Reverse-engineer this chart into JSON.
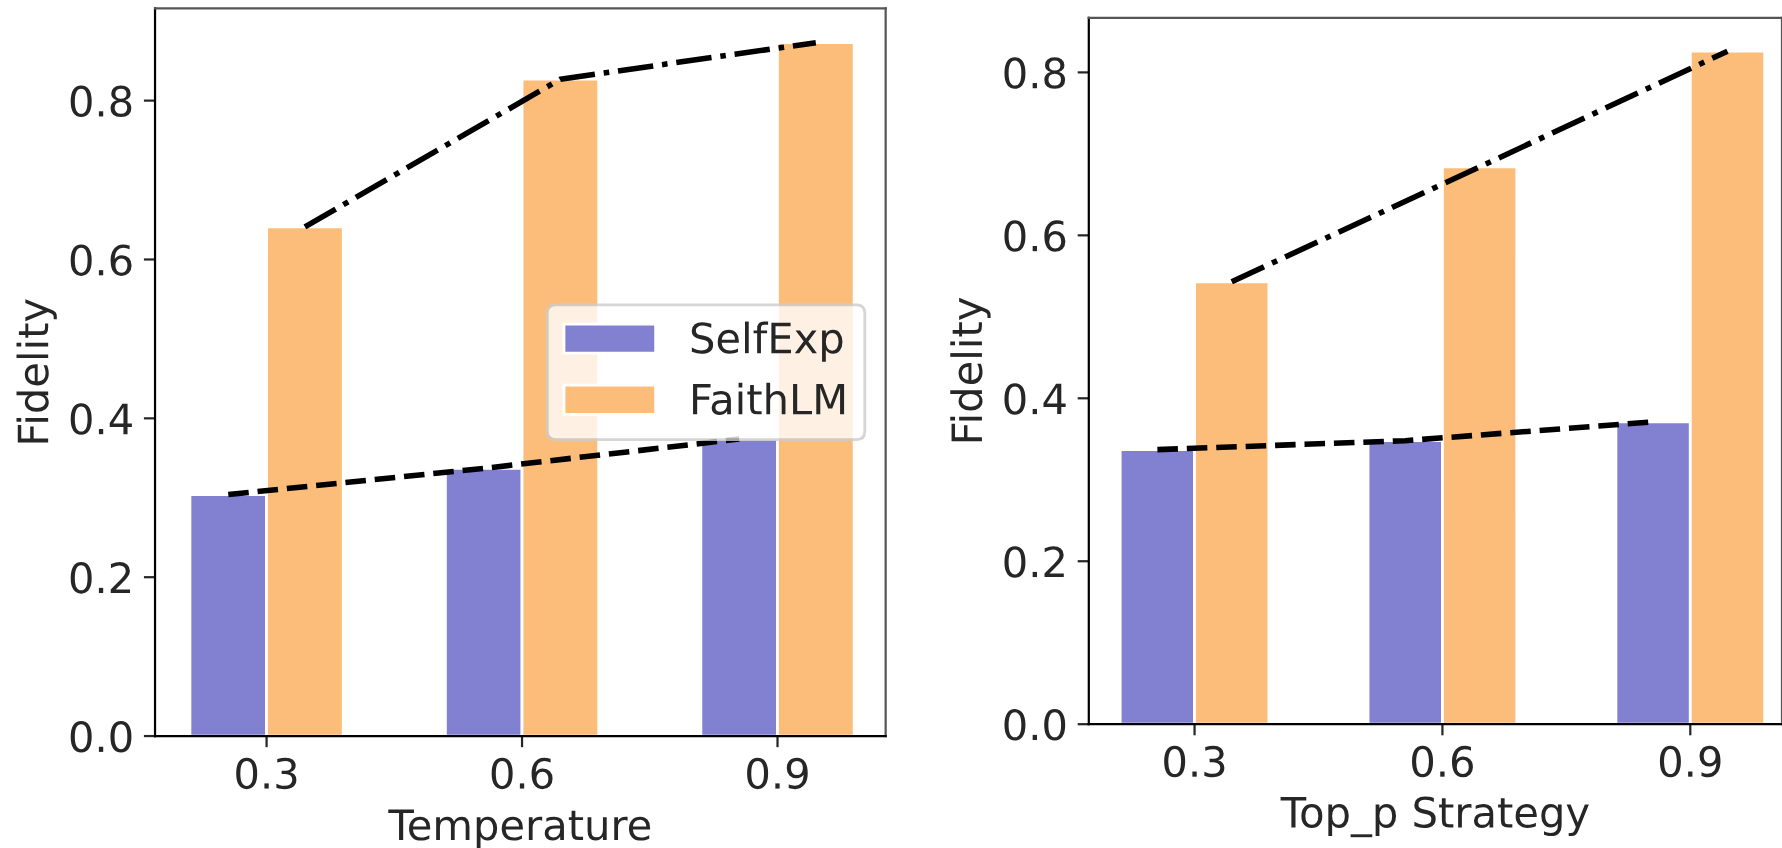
{
  "chart_data": [
    {
      "type": "bar",
      "xlabel": "Temperature",
      "ylabel": "Fidelity",
      "x": [
        0.3,
        0.6,
        0.9
      ],
      "xlim": [
        0.169,
        1.027
      ],
      "xticks": [
        0.3,
        0.6,
        0.9
      ],
      "ylim": [
        0,
        0.916
      ],
      "yticks": [
        {
          "value": 0,
          "label": "0.0"
        },
        0.2,
        0.4,
        0.6,
        0.8
      ],
      "legend": "center right",
      "grid": false,
      "series": [
        {
          "name": "SelfExp",
          "color": "#8281d1",
          "values": [
            0.304,
            0.337,
            0.374
          ]
        },
        {
          "name": "FaithLM",
          "color": "#fdbd7a",
          "values": [
            0.641,
            0.827,
            0.873
          ]
        },
        {
          "type": "line",
          "color": "#000000",
          "line_style": "dashed",
          "x": [
            0.255,
            0.555,
            0.855
          ],
          "values": [
            0.304,
            0.337,
            0.374
          ]
        },
        {
          "type": "line",
          "color": "#000000",
          "line_style": "dashdot",
          "x": [
            0.345,
            0.645,
            0.945
          ],
          "values": [
            0.641,
            0.827,
            0.873
          ]
        }
      ]
    },
    {
      "type": "bar",
      "xlabel": "Top_p Strategy",
      "ylabel": "Fidelity",
      "x": [
        0.3,
        0.6,
        0.9
      ],
      "xlim": [
        0.172,
        1.011
      ],
      "xticks": [
        0.3,
        0.6,
        0.9
      ],
      "ylim": [
        0,
        0.867
      ],
      "yticks": [
        {
          "value": 0,
          "label": "0.0"
        },
        0.2,
        0.4,
        0.6,
        0.8
      ],
      "grid": false,
      "series": [
        {
          "color": "#8281d1",
          "values": [
            0.337,
            0.348,
            0.371
          ]
        },
        {
          "color": "#fdbd7a",
          "values": [
            0.543,
            0.684,
            0.826
          ]
        },
        {
          "type": "line",
          "color": "#000000",
          "line_style": "dashed",
          "x": [
            0.255,
            0.555,
            0.855
          ],
          "values": [
            0.337,
            0.348,
            0.371
          ]
        },
        {
          "type": "line",
          "color": "#000000",
          "line_style": "dashdot",
          "x": [
            0.345,
            0.645,
            0.945
          ],
          "values": [
            0.543,
            0.684,
            0.826
          ]
        }
      ]
    }
  ]
}
